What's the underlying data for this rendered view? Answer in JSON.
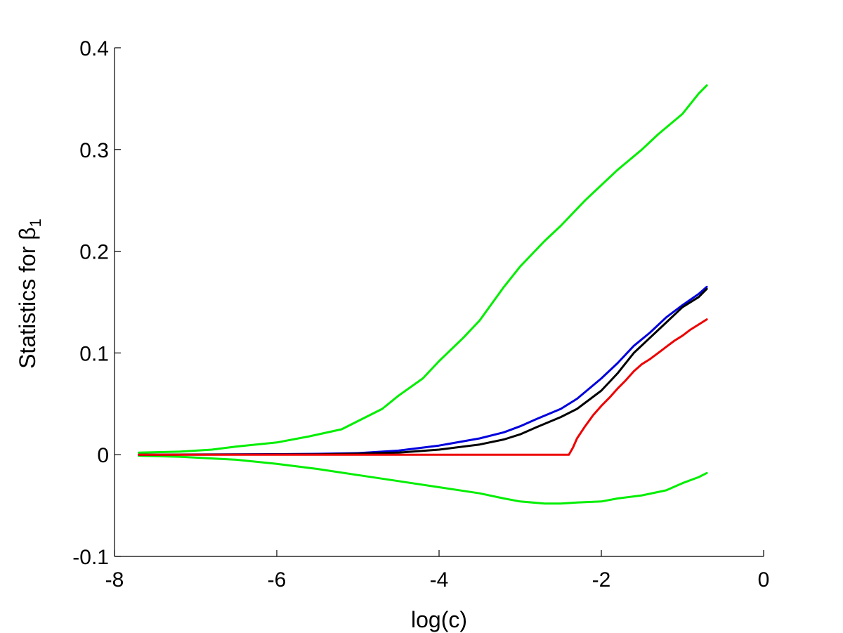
{
  "chart_data": {
    "type": "line",
    "title": "",
    "xlabel": "log(c)",
    "ylabel_prefix": "Statistics for ",
    "ylabel_symbol": "β",
    "ylabel_subscript": "1",
    "xlim": [
      -8,
      0
    ],
    "ylim": [
      -0.1,
      0.4
    ],
    "xticks": [
      -8,
      -6,
      -4,
      -2,
      0
    ],
    "xtick_labels": [
      "-8",
      "-6",
      "-4",
      "-2",
      "0"
    ],
    "yticks": [
      -0.1,
      0,
      0.1,
      0.2,
      0.3,
      0.4
    ],
    "ytick_labels": [
      "-0.1",
      "0",
      "0.1",
      "0.2",
      "0.3",
      "0.4"
    ],
    "grid": false,
    "legend": "none",
    "series": [
      {
        "color": "#00ee00",
        "points": [
          [
            -7.7,
            0.002
          ],
          [
            -7.2,
            0.003
          ],
          [
            -6.8,
            0.005
          ],
          [
            -6.5,
            0.008
          ],
          [
            -6.0,
            0.012
          ],
          [
            -5.6,
            0.018
          ],
          [
            -5.2,
            0.025
          ],
          [
            -5.0,
            0.033
          ],
          [
            -4.7,
            0.045
          ],
          [
            -4.5,
            0.058
          ],
          [
            -4.2,
            0.075
          ],
          [
            -4.0,
            0.092
          ],
          [
            -3.7,
            0.115
          ],
          [
            -3.5,
            0.132
          ],
          [
            -3.2,
            0.165
          ],
          [
            -3.0,
            0.185
          ],
          [
            -2.7,
            0.21
          ],
          [
            -2.5,
            0.225
          ],
          [
            -2.2,
            0.25
          ],
          [
            -2.0,
            0.265
          ],
          [
            -1.8,
            0.28
          ],
          [
            -1.5,
            0.3
          ],
          [
            -1.3,
            0.315
          ],
          [
            -1.0,
            0.335
          ],
          [
            -0.8,
            0.355
          ],
          [
            -0.7,
            0.363
          ]
        ]
      },
      {
        "color": "#00ee00",
        "points": [
          [
            -7.7,
            -0.001
          ],
          [
            -7.2,
            -0.002
          ],
          [
            -6.5,
            -0.005
          ],
          [
            -6.0,
            -0.009
          ],
          [
            -5.5,
            -0.014
          ],
          [
            -5.0,
            -0.02
          ],
          [
            -4.5,
            -0.026
          ],
          [
            -4.0,
            -0.032
          ],
          [
            -3.5,
            -0.038
          ],
          [
            -3.2,
            -0.043
          ],
          [
            -3.0,
            -0.046
          ],
          [
            -2.7,
            -0.048
          ],
          [
            -2.5,
            -0.048
          ],
          [
            -2.3,
            -0.047
          ],
          [
            -2.0,
            -0.046
          ],
          [
            -1.8,
            -0.043
          ],
          [
            -1.5,
            -0.04
          ],
          [
            -1.2,
            -0.035
          ],
          [
            -1.0,
            -0.028
          ],
          [
            -0.8,
            -0.022
          ],
          [
            -0.7,
            -0.018
          ]
        ]
      },
      {
        "color": "#0000dd",
        "points": [
          [
            -7.7,
            0.0
          ],
          [
            -6.0,
            0.0005
          ],
          [
            -5.5,
            0.0008
          ],
          [
            -5.0,
            0.0015
          ],
          [
            -4.5,
            0.004
          ],
          [
            -4.0,
            0.009
          ],
          [
            -3.5,
            0.016
          ],
          [
            -3.2,
            0.022
          ],
          [
            -3.0,
            0.028
          ],
          [
            -2.8,
            0.035
          ],
          [
            -2.5,
            0.045
          ],
          [
            -2.3,
            0.055
          ],
          [
            -2.0,
            0.075
          ],
          [
            -1.8,
            0.09
          ],
          [
            -1.6,
            0.107
          ],
          [
            -1.4,
            0.12
          ],
          [
            -1.2,
            0.135
          ],
          [
            -1.0,
            0.147
          ],
          [
            -0.8,
            0.158
          ],
          [
            -0.7,
            0.165
          ]
        ]
      },
      {
        "color": "#000000",
        "points": [
          [
            -7.7,
            0.0
          ],
          [
            -5.5,
            0.0003
          ],
          [
            -5.0,
            0.001
          ],
          [
            -4.5,
            0.002
          ],
          [
            -4.0,
            0.005
          ],
          [
            -3.5,
            0.01
          ],
          [
            -3.2,
            0.015
          ],
          [
            -3.0,
            0.02
          ],
          [
            -2.8,
            0.027
          ],
          [
            -2.5,
            0.037
          ],
          [
            -2.3,
            0.045
          ],
          [
            -2.0,
            0.063
          ],
          [
            -1.8,
            0.08
          ],
          [
            -1.6,
            0.1
          ],
          [
            -1.4,
            0.115
          ],
          [
            -1.2,
            0.13
          ],
          [
            -1.0,
            0.145
          ],
          [
            -0.8,
            0.155
          ],
          [
            -0.7,
            0.163
          ]
        ]
      },
      {
        "color": "#ee0000",
        "points": [
          [
            -7.7,
            0.0
          ],
          [
            -2.4,
            0.0
          ],
          [
            -2.35,
            0.007
          ],
          [
            -2.3,
            0.016
          ],
          [
            -2.2,
            0.028
          ],
          [
            -2.1,
            0.039
          ],
          [
            -2.0,
            0.048
          ],
          [
            -1.9,
            0.056
          ],
          [
            -1.8,
            0.065
          ],
          [
            -1.7,
            0.073
          ],
          [
            -1.6,
            0.082
          ],
          [
            -1.5,
            0.089
          ],
          [
            -1.4,
            0.094
          ],
          [
            -1.3,
            0.1
          ],
          [
            -1.2,
            0.106
          ],
          [
            -1.1,
            0.112
          ],
          [
            -1.0,
            0.117
          ],
          [
            -0.9,
            0.123
          ],
          [
            -0.8,
            0.128
          ],
          [
            -0.7,
            0.133
          ]
        ]
      }
    ]
  }
}
